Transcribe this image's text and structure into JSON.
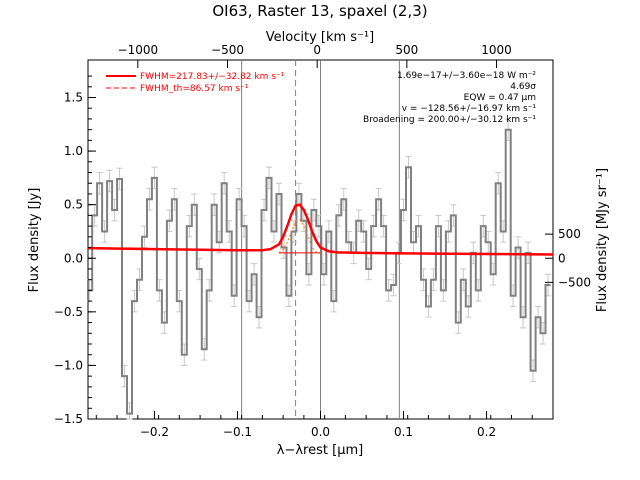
{
  "chart_data": {
    "type": "line",
    "title": "OI63, Raster 13, spaxel (2,3)",
    "xlabel": "λ−λrest [μm]",
    "ylabel": "Flux density [Jy]",
    "top_axis_label": "Velocity [km s⁻¹]",
    "right_axis_label": "Flux density [MJy sr⁻¹]",
    "xlim": [
      -0.28,
      0.28
    ],
    "ylim": [
      -1.5,
      1.85
    ],
    "x_ticks": [
      -0.2,
      -0.1,
      0.0,
      0.1,
      0.2
    ],
    "x_tick_labels": [
      "−0.2",
      "−0.1",
      "0.0",
      "0.1",
      "0.2"
    ],
    "y_ticks": [
      -1.5,
      -1.0,
      -0.5,
      0.0,
      0.5,
      1.0,
      1.5
    ],
    "y_tick_labels": [
      "−1.5",
      "−1.0",
      "−0.5",
      "0.0",
      "0.5",
      "1.0",
      "1.5"
    ],
    "top_ticks_kms": [
      -1000,
      -500,
      0,
      500,
      1000
    ],
    "top_tick_labels": [
      "−1000",
      "−500",
      "0",
      "500",
      "1000"
    ],
    "top_axis_x_at_zero_kms": -0.004,
    "top_axis_um_per_kms": 0.000216,
    "right_ticks": [
      -500,
      0,
      500
    ],
    "right_tick_labels": [
      "−500",
      "0",
      "500"
    ],
    "right_axis_jy_per_unit": 0.00045,
    "vlines": [
      -0.095,
      0.0,
      0.095
    ],
    "center_line": -0.03,
    "legend": [
      {
        "label": "FWHM=217.83+/−32.82 km s⁻¹",
        "style": "solid",
        "color": "#ff0000"
      },
      {
        "label": "FWHM_th=86.57 km s⁻¹",
        "style": "dashed",
        "color": "#ff0000"
      }
    ],
    "annotations": [
      "1.69e−17+/−3.60e−18 W m⁻²",
      "4.69σ",
      "EQW = 0.47 μm",
      "v = −128.56+/−16.97 km s⁻¹",
      "Broadening = 200.00+/−30.12 km s⁻¹"
    ],
    "colors": {
      "data": "#808080",
      "fit": "#ff0000",
      "components": "#ff8000",
      "guides": "#808080"
    },
    "series": [
      {
        "name": "data",
        "style": "step",
        "x": [
          -0.278,
          -0.272,
          -0.266,
          -0.26,
          -0.254,
          -0.248,
          -0.242,
          -0.236,
          -0.23,
          -0.224,
          -0.218,
          -0.212,
          -0.206,
          -0.2,
          -0.194,
          -0.188,
          -0.182,
          -0.176,
          -0.17,
          -0.164,
          -0.158,
          -0.152,
          -0.146,
          -0.14,
          -0.134,
          -0.128,
          -0.122,
          -0.116,
          -0.11,
          -0.104,
          -0.098,
          -0.092,
          -0.086,
          -0.08,
          -0.074,
          -0.068,
          -0.062,
          -0.056,
          -0.05,
          -0.044,
          -0.038,
          -0.032,
          -0.026,
          -0.02,
          -0.014,
          -0.008,
          -0.002,
          0.004,
          0.01,
          0.016,
          0.022,
          0.028,
          0.034,
          0.04,
          0.046,
          0.052,
          0.058,
          0.064,
          0.07,
          0.076,
          0.082,
          0.088,
          0.094,
          0.1,
          0.106,
          0.112,
          0.118,
          0.124,
          0.13,
          0.136,
          0.142,
          0.148,
          0.154,
          0.16,
          0.166,
          0.172,
          0.178,
          0.184,
          0.19,
          0.196,
          0.202,
          0.208,
          0.214,
          0.22,
          0.226,
          0.232,
          0.238,
          0.244,
          0.25,
          0.256,
          0.262,
          0.268,
          0.274
        ],
        "y": [
          -0.3,
          0.4,
          0.7,
          0.25,
          0.72,
          0.45,
          0.74,
          -1.1,
          -1.45,
          -0.4,
          -0.2,
          0.2,
          0.55,
          0.75,
          -0.3,
          -0.6,
          0.35,
          0.55,
          -0.4,
          -0.9,
          0.3,
          0.5,
          -0.1,
          -0.85,
          -0.3,
          0.5,
          0.15,
          0.7,
          0.25,
          -0.35,
          0.55,
          0.3,
          -0.4,
          -0.15,
          -0.55,
          0.45,
          0.75,
          0.25,
          0.6,
          0.1,
          -0.35,
          0.25,
          0.6,
          0.35,
          -0.15,
          0.45,
          0.3,
          -0.15,
          0.25,
          -0.4,
          0.4,
          0.55,
          0.15,
          0.05,
          0.35,
          0.25,
          -0.1,
          0.3,
          0.55,
          0.3,
          -0.3,
          -0.25,
          0.05,
          0.45,
          0.85,
          0.15,
          0.3,
          -0.2,
          -0.45,
          -0.2,
          0.3,
          -0.3,
          0.25,
          0.4,
          -0.6,
          -0.2,
          -0.45,
          0.05,
          -0.3,
          0.3,
          0.15,
          -0.15,
          0.7,
          0.25,
          1.2,
          -0.35,
          0.1,
          -0.55,
          0.05,
          -1.05,
          -0.55,
          -0.7,
          -0.25
        ]
      },
      {
        "name": "fit",
        "style": "line",
        "x": [
          -0.28,
          -0.2,
          -0.1,
          -0.07,
          -0.06,
          -0.05,
          -0.045,
          -0.04,
          -0.035,
          -0.03,
          -0.025,
          -0.02,
          -0.015,
          -0.01,
          -0.005,
          0.0,
          0.01,
          0.02,
          0.05,
          0.1,
          0.2,
          0.28
        ],
        "y": [
          0.095,
          0.085,
          0.075,
          0.075,
          0.085,
          0.13,
          0.2,
          0.3,
          0.41,
          0.49,
          0.5,
          0.45,
          0.36,
          0.25,
          0.16,
          0.1,
          0.065,
          0.055,
          0.05,
          0.045,
          0.04,
          0.035
        ]
      },
      {
        "name": "components",
        "style": "dotted",
        "x": [
          -0.05,
          -0.045,
          -0.04,
          -0.035,
          -0.03,
          -0.025,
          -0.02,
          -0.015,
          -0.01,
          -0.005,
          0.0
        ],
        "y": [
          0.05,
          0.08,
          0.15,
          0.25,
          0.34,
          0.36,
          0.3,
          0.2,
          0.1,
          0.06,
          0.05
        ]
      }
    ]
  }
}
